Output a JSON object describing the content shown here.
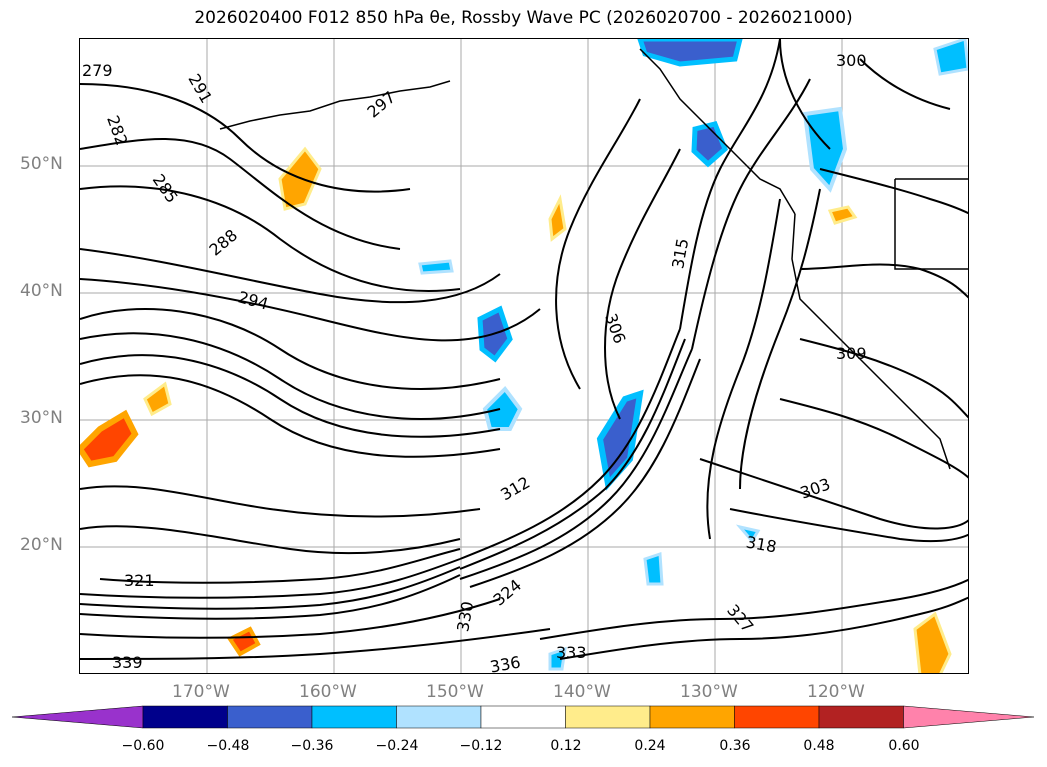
{
  "title": "2026020400 F012 850 hPa θe, Rossby Wave PC (2026020700 - 2026021000)",
  "lat_labels": [
    "50°N",
    "40°N",
    "30°N",
    "20°N"
  ],
  "lon_labels": [
    "170°W",
    "160°W",
    "150°W",
    "140°W",
    "130°W",
    "120°W"
  ],
  "contour_labels": [
    "279",
    "282",
    "285",
    "288",
    "291",
    "294",
    "297",
    "300",
    "303",
    "306",
    "309",
    "312",
    "315",
    "318",
    "321",
    "324",
    "327",
    "330",
    "333",
    "336",
    "339"
  ],
  "colorbar": {
    "ticks": [
      "−0.60",
      "−0.48",
      "−0.36",
      "−0.24",
      "−0.12",
      "0.12",
      "0.24",
      "0.36",
      "0.48",
      "0.60"
    ],
    "colors": [
      "#9932CC",
      "#00008B",
      "#3A5FCD",
      "#00BFFF",
      "#B0E2FF",
      "#FFFFFF",
      "#FFEC8B",
      "#FFA500",
      "#FF4500",
      "#B22222",
      "#FF82AB"
    ]
  }
}
